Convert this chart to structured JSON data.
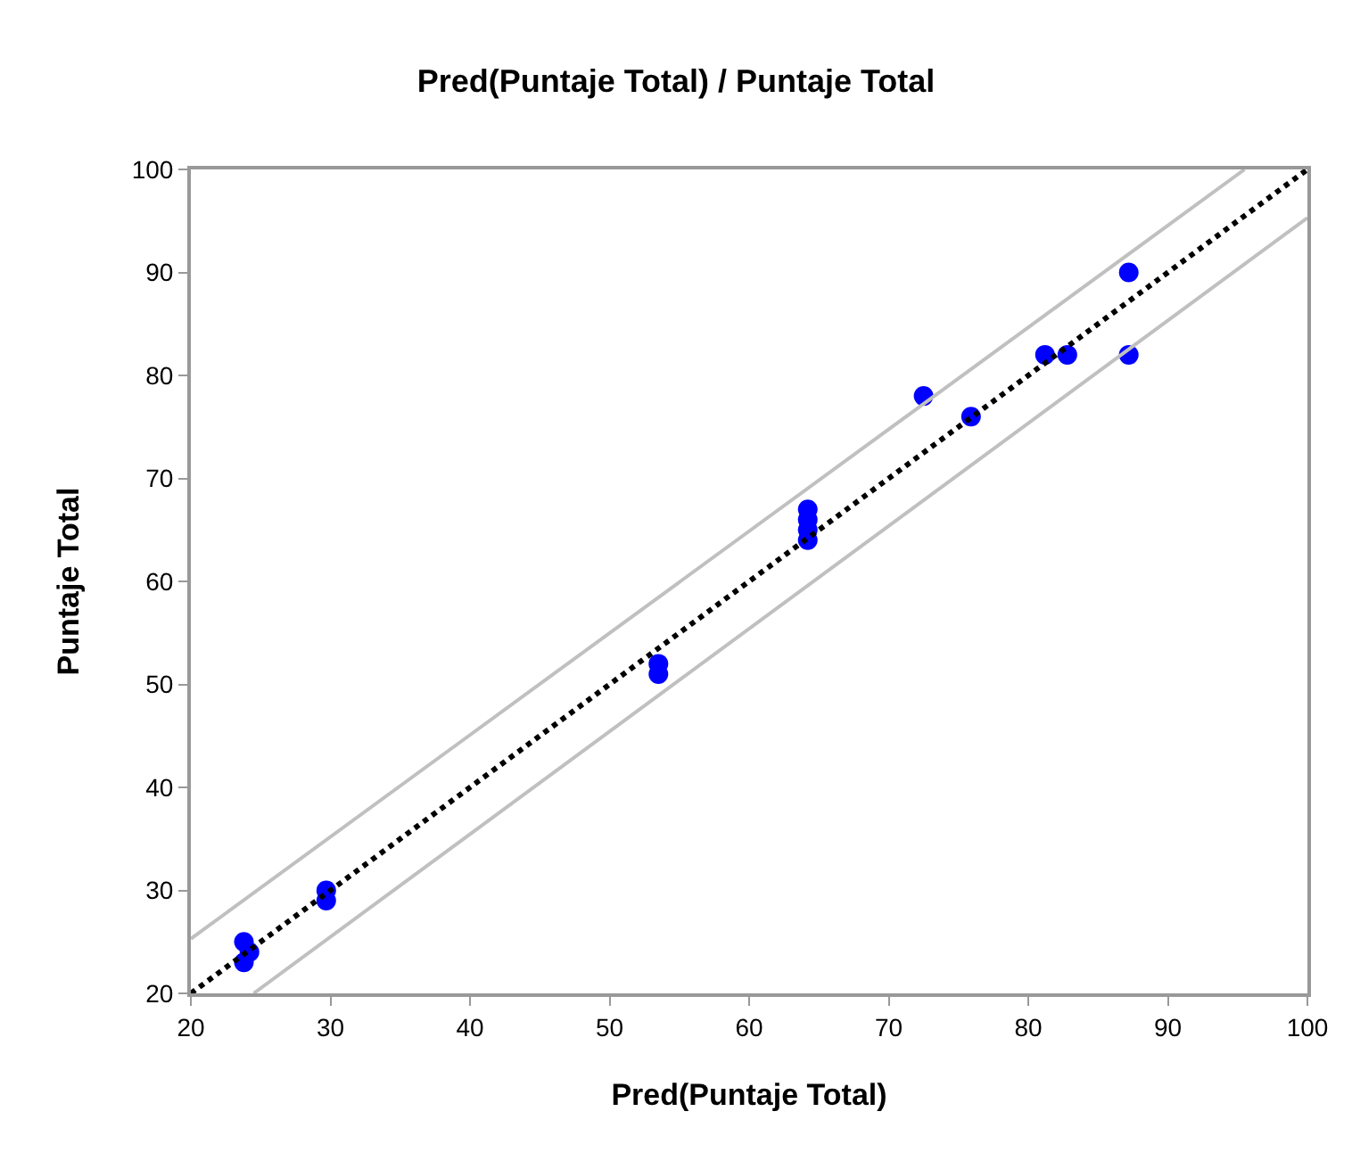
{
  "chart_data": {
    "type": "scatter",
    "title": "Pred(Puntaje Total) / Puntaje Total",
    "xlabel": "Pred(Puntaje Total)",
    "ylabel": "Puntaje Total",
    "x": [
      23.8,
      23.8,
      24.2,
      29.7,
      29.7,
      53.5,
      53.5,
      64.2,
      64.2,
      64.2,
      64.2,
      72.5,
      75.9,
      81.2,
      82.8,
      87.2,
      87.2
    ],
    "series": [
      {
        "color": "#0000ff",
        "marker": "circle",
        "values": [
          25,
          23,
          24,
          30,
          29,
          52,
          51,
          67,
          66,
          65,
          64,
          78,
          76,
          82,
          82,
          90,
          82
        ]
      },
      {
        "type": "line",
        "color": "#000000",
        "line_style": "dotted",
        "x": [
          20,
          100
        ],
        "values": [
          20,
          100
        ]
      },
      {
        "type": "line",
        "color": "#c0c0c0",
        "line_style": "solid",
        "x": [
          20,
          95.5
        ],
        "values": [
          25.3,
          100
        ]
      },
      {
        "type": "line",
        "color": "#c0c0c0",
        "line_style": "solid",
        "x": [
          24.5,
          100
        ],
        "values": [
          20,
          95.3
        ]
      }
    ],
    "xlim": [
      20,
      100
    ],
    "xticks": [
      20,
      30,
      40,
      50,
      60,
      70,
      80,
      90,
      100
    ],
    "ylim": [
      20,
      100
    ],
    "yticks": [
      20,
      30,
      40,
      50,
      60,
      70,
      80,
      90,
      100
    ]
  }
}
